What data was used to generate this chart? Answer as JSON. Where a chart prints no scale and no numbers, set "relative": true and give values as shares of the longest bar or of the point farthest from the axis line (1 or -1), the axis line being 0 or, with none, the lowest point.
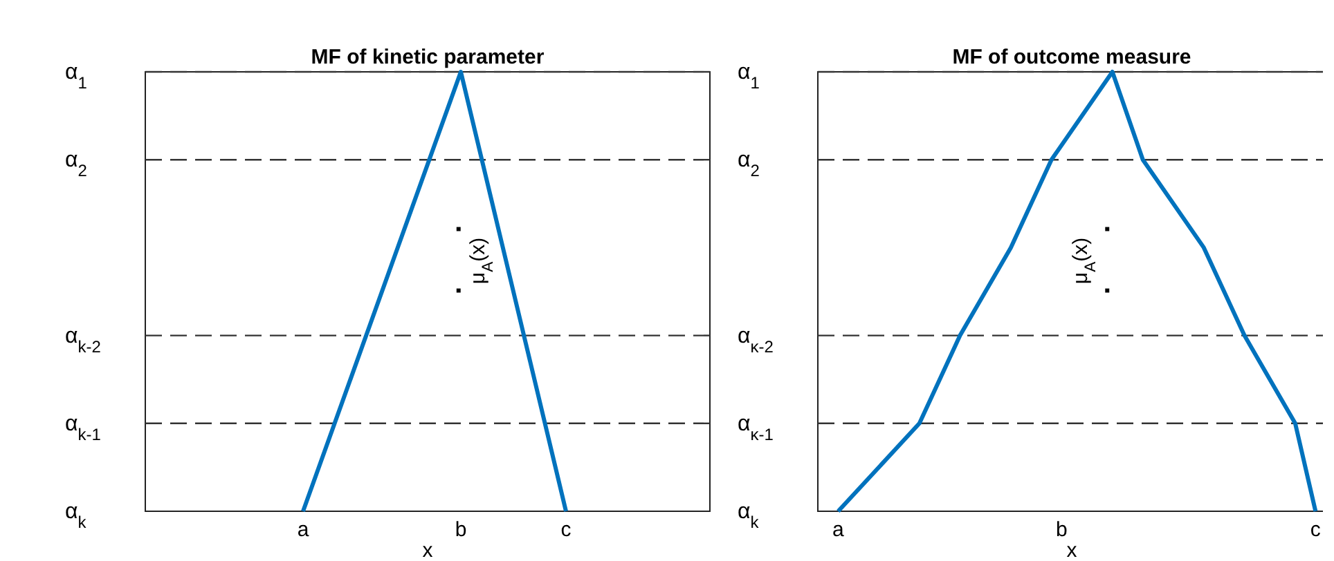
{
  "chart_data": [
    {
      "type": "line",
      "relative": true,
      "title": "MF of kinetic parameter",
      "xlabel": "x",
      "ylabel": "μ$_{A}$(x)",
      "categories": [
        null,
        null,
        null,
        "a",
        null,
        null,
        "b",
        null,
        "c",
        null,
        null
      ],
      "values": [
        null,
        null,
        null,
        0,
        null,
        null,
        1,
        null,
        0,
        null,
        null
      ],
      "color": "#0072bd",
      "ref_lines": [
        {
          "axis": "y",
          "value": 1,
          "label": "α$_{1}$",
          "line_style": "dashed"
        },
        {
          "axis": "y",
          "value": 0.8,
          "label": "α$_{2}$",
          "line_style": "dashed"
        },
        {
          "axis": "y",
          "value": 0.4,
          "label": "α$_{k-2}$",
          "line_style": "dashed"
        },
        {
          "axis": "y",
          "value": 0.2,
          "label": "α$_{k-1}$",
          "line_style": "dashed"
        }
      ],
      "annotations": [
        "α$_{k}$",
        "▪",
        "▪"
      ]
    },
    {
      "type": "line",
      "relative": true,
      "title": "MF of outcome measure",
      "xlabel": "x",
      "ylabel": "μ$_{A}$(x)",
      "categories": [
        null,
        null,
        "a",
        null,
        null,
        null,
        null,
        null,
        null,
        null,
        null,
        null,
        null,
        null,
        null,
        null,
        null,
        null,
        null,
        null,
        null,
        null,
        null,
        null,
        "b",
        null,
        null,
        null,
        null,
        null,
        null,
        null,
        null,
        null,
        null,
        null,
        null,
        null,
        null,
        null,
        null,
        null,
        null,
        null,
        null,
        null,
        null,
        null,
        null,
        "c",
        null
      ],
      "values": [
        null,
        null,
        0,
        null,
        null,
        null,
        null,
        null,
        null,
        null,
        0.2,
        null,
        null,
        null,
        0.4,
        null,
        null,
        null,
        null,
        0.6,
        null,
        null,
        null,
        0.8,
        null,
        null,
        null,
        null,
        null,
        1,
        null,
        null,
        0.8,
        null,
        null,
        null,
        null,
        null,
        0.6,
        null,
        null,
        null,
        0.4,
        null,
        null,
        null,
        null,
        0.2,
        null,
        0,
        null
      ],
      "color": "#0072bd",
      "ref_lines": [
        {
          "axis": "y",
          "value": 1,
          "label": "α$_{1}$",
          "line_style": "dashed"
        },
        {
          "axis": "y",
          "value": 0.8,
          "label": "α$_{2}$",
          "line_style": "dashed"
        },
        {
          "axis": "y",
          "value": 0.4,
          "label": "α$_{κ-2}$",
          "line_style": "dashed"
        },
        {
          "axis": "y",
          "value": 0.2,
          "label": "α$_{κ-1}$",
          "line_style": "dashed"
        }
      ],
      "annotations": [
        "α$_{k}$",
        "▪",
        "▪"
      ]
    }
  ]
}
